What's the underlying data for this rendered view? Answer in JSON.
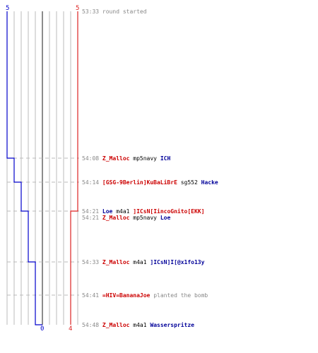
{
  "scores": {
    "blue_start": "5",
    "red_start": "5",
    "blue_end": "0",
    "red_end": "4"
  },
  "colors": {
    "blue_team": "#0000cc",
    "red_team": "#dd2222",
    "grid": "#bbbbbb",
    "center_line": "#666666",
    "leader": "#bbbbbb"
  },
  "events": [
    {
      "time": "53:33",
      "parts": [
        {
          "text": "round started",
          "style": "sys"
        }
      ]
    },
    {
      "time": "54:08",
      "parts": [
        {
          "text": "Z_Malloc",
          "style": "red"
        },
        {
          "text": "mp5navy",
          "style": "txt"
        },
        {
          "text": "ICH",
          "style": "blue"
        }
      ]
    },
    {
      "time": "54:14",
      "parts": [
        {
          "text": "[GSG-9Berlin]KuBaLiBrE",
          "style": "red"
        },
        {
          "text": "sg552",
          "style": "txt"
        },
        {
          "text": "Hacke",
          "style": "blue"
        }
      ]
    },
    {
      "time": "54:21",
      "parts": [
        {
          "text": "Loe",
          "style": "blue"
        },
        {
          "text": "m4a1",
          "style": "txt"
        },
        {
          "text": "]ICsN[IincoGnito[EKK]",
          "style": "red"
        }
      ]
    },
    {
      "time": "54:21",
      "parts": [
        {
          "text": "Z_Malloc",
          "style": "red"
        },
        {
          "text": "mp5navy",
          "style": "txt"
        },
        {
          "text": "Loe",
          "style": "blue"
        }
      ]
    },
    {
      "time": "54:33",
      "parts": [
        {
          "text": "Z_Malloc",
          "style": "red"
        },
        {
          "text": "m4a1",
          "style": "txt"
        },
        {
          "text": "]ICsN]I[@x1fo13y",
          "style": "blue"
        }
      ]
    },
    {
      "time": "54:41",
      "parts": [
        {
          "text": "=HIV=BananaJoe",
          "style": "red"
        },
        {
          "text": "planted the bomb",
          "style": "sys"
        }
      ]
    },
    {
      "time": "54:48",
      "parts": [
        {
          "text": "Z_Malloc",
          "style": "red"
        },
        {
          "text": "m4a1",
          "style": "txt"
        },
        {
          "text": "Wasserspritze",
          "style": "blue"
        }
      ]
    }
  ]
}
